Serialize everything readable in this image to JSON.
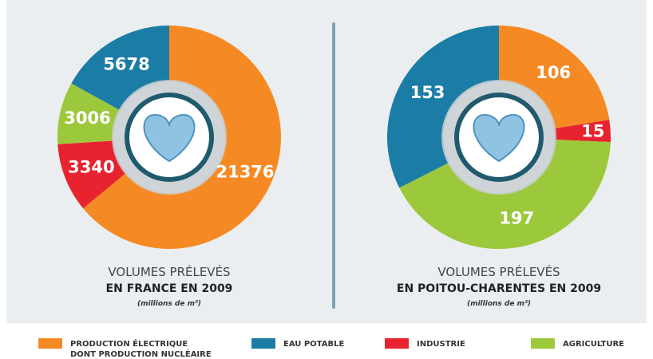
{
  "chart_data": [
    {
      "type": "pie",
      "title": "VOLUMES PRÉLEVÉS",
      "subtitle": "EN FRANCE EN 2009",
      "unit": "(millions de m³)",
      "values": [
        21376,
        3340,
        3006,
        5678
      ],
      "colors": [
        "#f58a25",
        "#e8232f",
        "#9cc83b",
        "#1b7da6"
      ]
    },
    {
      "type": "pie",
      "title": "VOLUMES PRÉLEVÉS",
      "subtitle": "EN POITOU-CHARENTES EN 2009",
      "unit": "(millions de m³)",
      "values": [
        106,
        15,
        197,
        153
      ],
      "colors": [
        "#f58a25",
        "#e8232f",
        "#9cc83b",
        "#1b7da6"
      ]
    }
  ],
  "legend": [
    {
      "name": "PRODUCTION ÉLECTRIQUE DONT PRODUCTION NUCLÉAIRE",
      "color": "#f58a25"
    },
    {
      "name": "EAU POTABLE",
      "color": "#1b7da6"
    },
    {
      "name": "INDUSTRIE",
      "color": "#e8232f"
    },
    {
      "name": "AGRICULTURE",
      "color": "#9cc83b"
    }
  ]
}
